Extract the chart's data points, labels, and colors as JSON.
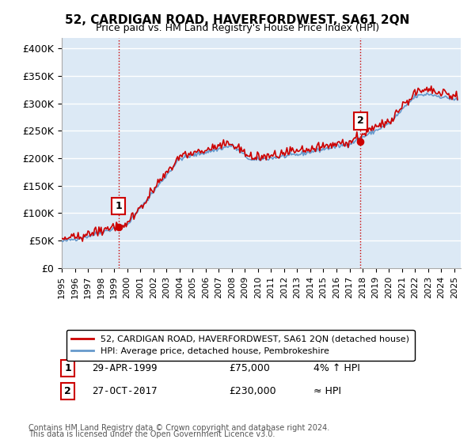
{
  "title": "52, CARDIGAN ROAD, HAVERFORDWEST, SA61 2QN",
  "subtitle": "Price paid vs. HM Land Registry's House Price Index (HPI)",
  "ylabel_ticks": [
    "£0",
    "£50K",
    "£100K",
    "£150K",
    "£200K",
    "£250K",
    "£300K",
    "£350K",
    "£400K"
  ],
  "ytick_values": [
    0,
    50000,
    100000,
    150000,
    200000,
    250000,
    300000,
    350000,
    400000
  ],
  "ylim": [
    0,
    420000
  ],
  "xlim_start": 1995.0,
  "xlim_end": 2025.5,
  "bg_color": "#dce9f5",
  "grid_color": "#ffffff",
  "sale1": {
    "date_num": 1999.33,
    "price": 75000,
    "label": "1"
  },
  "sale2": {
    "date_num": 2017.83,
    "price": 230000,
    "label": "2"
  },
  "legend_label_property": "52, CARDIGAN ROAD, HAVERFORDWEST, SA61 2QN (detached house)",
  "legend_label_hpi": "HPI: Average price, detached house, Pembrokeshire",
  "table_rows": [
    {
      "num": "1",
      "date": "29-APR-1999",
      "price": "£75,000",
      "relation": "4% ↑ HPI"
    },
    {
      "num": "2",
      "date": "27-OCT-2017",
      "price": "£230,000",
      "relation": "≈ HPI"
    }
  ],
  "footer": "Contains HM Land Registry data © Crown copyright and database right 2024.\nThis data is licensed under the Open Government Licence v3.0.",
  "property_line_color": "#cc0000",
  "hpi_line_color": "#6699cc",
  "vline_color": "#cc0000",
  "xtick_years": [
    1995,
    1996,
    1997,
    1998,
    1999,
    2000,
    2001,
    2002,
    2003,
    2004,
    2005,
    2006,
    2007,
    2008,
    2009,
    2010,
    2011,
    2012,
    2013,
    2014,
    2015,
    2016,
    2017,
    2018,
    2019,
    2020,
    2021,
    2022,
    2023,
    2024,
    2025
  ]
}
